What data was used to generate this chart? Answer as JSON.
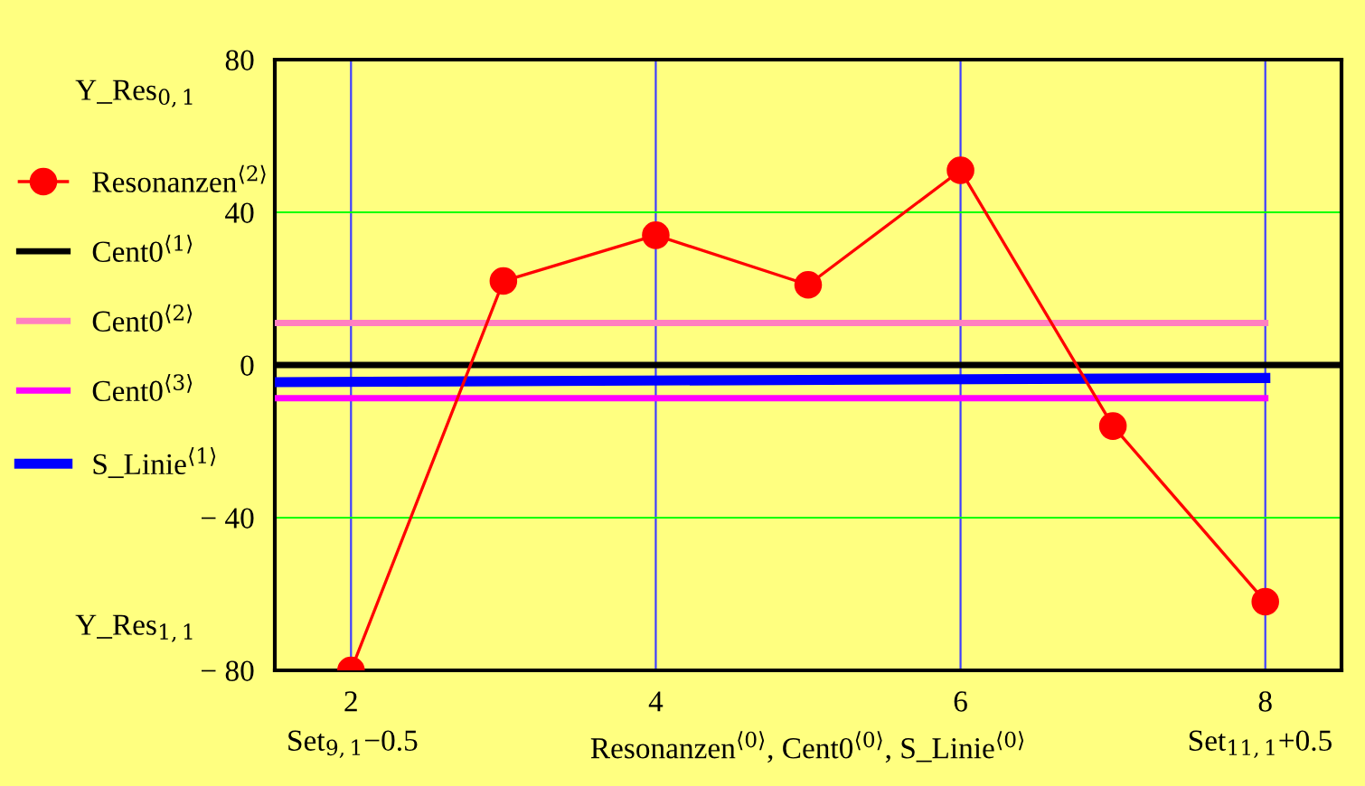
{
  "chart_data": {
    "type": "line",
    "xlabel": "Resonanzen$^{⟨0⟩}$, Cent0$^{⟨0⟩}$, S_Linie$^{⟨0⟩}$",
    "annotations": [
      "Y_Res$_{0,1}$",
      "Y_Res$_{1,1}$",
      "Set$_{9,1}$−0.5",
      "Set$_{11,1}$+0.5"
    ],
    "xlim": [
      1.5,
      8.5
    ],
    "xticks": [
      2,
      4,
      6,
      8
    ],
    "ylim": [
      -80,
      80
    ],
    "yticks": [
      {
        "value": -80,
        "label": "− 80"
      },
      {
        "value": -40,
        "label": "− 40"
      },
      0,
      40,
      80
    ],
    "grid": true,
    "legend": "left",
    "series": [
      {
        "name": "Resonanzen$^{⟨2⟩}$",
        "color": "#ff0000",
        "marker": "circle",
        "x": [
          2,
          3,
          4,
          5,
          6,
          7,
          8
        ],
        "values": [
          -80,
          22,
          34,
          21,
          51,
          -16,
          -62
        ]
      },
      {
        "name": "Cent0$^{⟨1⟩}$",
        "color": "#000000",
        "x": [
          1.5,
          8.5
        ],
        "values": [
          0,
          0
        ]
      },
      {
        "name": "Cent0$^{⟨2⟩}$",
        "color": "#ff80c0",
        "x": [
          1.5,
          8
        ],
        "values": [
          11,
          11
        ]
      },
      {
        "name": "Cent0$^{⟨3⟩}$",
        "color": "#ff00ff",
        "x": [
          1.5,
          8
        ],
        "values": [
          -8.7,
          -8.7
        ]
      },
      {
        "name": "S_Linie$^{⟨1⟩}$",
        "color": "#0000ff",
        "x": [
          1.5,
          8
        ],
        "values": [
          -4.5,
          -3.4
        ]
      }
    ]
  }
}
